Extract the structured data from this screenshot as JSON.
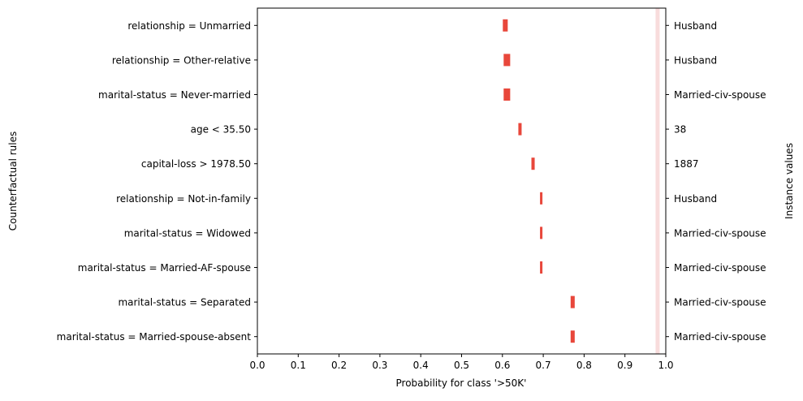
{
  "chart_data": {
    "type": "bar",
    "orientation": "horizontal",
    "xlabel": "Probability for class '>50K'",
    "ylabel": "Counterfactual rules",
    "ylabel_right": "Instance values",
    "xlim": [
      0.0,
      1.0
    ],
    "xticks": [
      "0.0",
      "0.1",
      "0.2",
      "0.3",
      "0.4",
      "0.5",
      "0.6",
      "0.7",
      "0.8",
      "0.9",
      "1.0"
    ],
    "grid": false,
    "legend": "none",
    "reference_band": {
      "from": 0.975,
      "to": 0.985,
      "color": "#f8dcdc"
    },
    "series_color": "#e8473b",
    "rules": [
      {
        "label": "relationship = Unmarried",
        "instance_value": "Husband",
        "low": 0.601,
        "high": 0.613
      },
      {
        "label": "relationship = Other-relative",
        "instance_value": "Husband",
        "low": 0.603,
        "high": 0.619
      },
      {
        "label": "marital-status = Never-married",
        "instance_value": "Married-civ-spouse",
        "low": 0.603,
        "high": 0.619
      },
      {
        "label": "age < 35.50",
        "instance_value": "38",
        "low": 0.639,
        "high": 0.647
      },
      {
        "label": "capital-loss > 1978.50",
        "instance_value": "1887",
        "low": 0.671,
        "high": 0.679
      },
      {
        "label": "relationship = Not-in-family",
        "instance_value": "Husband",
        "low": 0.692,
        "high": 0.698
      },
      {
        "label": "marital-status = Widowed",
        "instance_value": "Married-civ-spouse",
        "low": 0.692,
        "high": 0.698
      },
      {
        "label": "marital-status = Married-AF-spouse",
        "instance_value": "Married-civ-spouse",
        "low": 0.692,
        "high": 0.698
      },
      {
        "label": "marital-status = Separated",
        "instance_value": "Married-civ-spouse",
        "low": 0.767,
        "high": 0.777
      },
      {
        "label": "marital-status = Married-spouse-absent",
        "instance_value": "Married-civ-spouse",
        "low": 0.767,
        "high": 0.777
      }
    ]
  }
}
